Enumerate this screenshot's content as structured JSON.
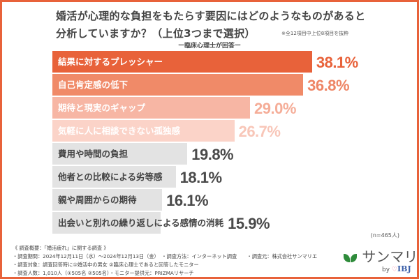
{
  "header": {
    "title_line1": "婚活が心理的な負担をもたらす要因にはどのようなものがあると",
    "title_line2": "分析していますか？（上位3つまで選択）",
    "note": "※全12項目中上位8項目を抜粋",
    "subtitle": "ー臨床心理士が回答ー"
  },
  "chart_data": {
    "type": "bar",
    "orientation": "horizontal",
    "unit": "%",
    "categories": [
      "結果に対するプレッシャー",
      "自己肯定感の低下",
      "期待と現実のギャップ",
      "気軽に人に相談できない孤独感",
      "費用や時間の負担",
      "他者との比較による劣等感",
      "親や周囲からの期待",
      "出会いと別れの繰り返しによる感情の消耗"
    ],
    "values": [
      38.1,
      36.8,
      29.0,
      26.7,
      19.8,
      18.1,
      16.1,
      15.9
    ],
    "value_labels": [
      "38.1%",
      "36.8%",
      "29.0%",
      "26.7%",
      "19.8%",
      "18.1%",
      "16.1%",
      "15.9%"
    ],
    "bar_colors": [
      "#e8623a",
      "#f08a68",
      "#f7b6a4",
      "#fbd3c8",
      "#e3e3e3",
      "#e3e3e3",
      "#e3e3e3",
      "#e3e3e3"
    ],
    "label_colors": [
      "#ffffff",
      "#ffffff",
      "#ffffff",
      "#ffffff",
      "#444444",
      "#444444",
      "#444444",
      "#444444"
    ],
    "value_colors": [
      "#e8623a",
      "#ee8565",
      "#f5ad98",
      "#f8c6b8",
      "#4a4a4a",
      "#4a4a4a",
      "#4a4a4a",
      "#4a4a4a"
    ],
    "xlim": [
      0,
      40
    ],
    "grid": false
  },
  "sample": "(n=465人)",
  "footer": {
    "line1": "《 調査概要：「婚活疲れ」に関する調査 》",
    "line2": "・調査期間：2024年12月11日（水）～2024年12月13日（金）　・調査方法：インターネット調査　　・調査元：株式会社サンマリエ",
    "line3": "・調査対象：調査回答時に①婚活中の男女 ②臨床心理士であると回答したモニター",
    "line4": "・調査人数：1,010人（①505名 ②505名）・モニター提供元：PRIZMAリサーチ"
  },
  "logo": {
    "name": "サンマリエ",
    "by": "by",
    "brand": "IBJ"
  },
  "colors": {
    "accent": "#e8623a"
  }
}
